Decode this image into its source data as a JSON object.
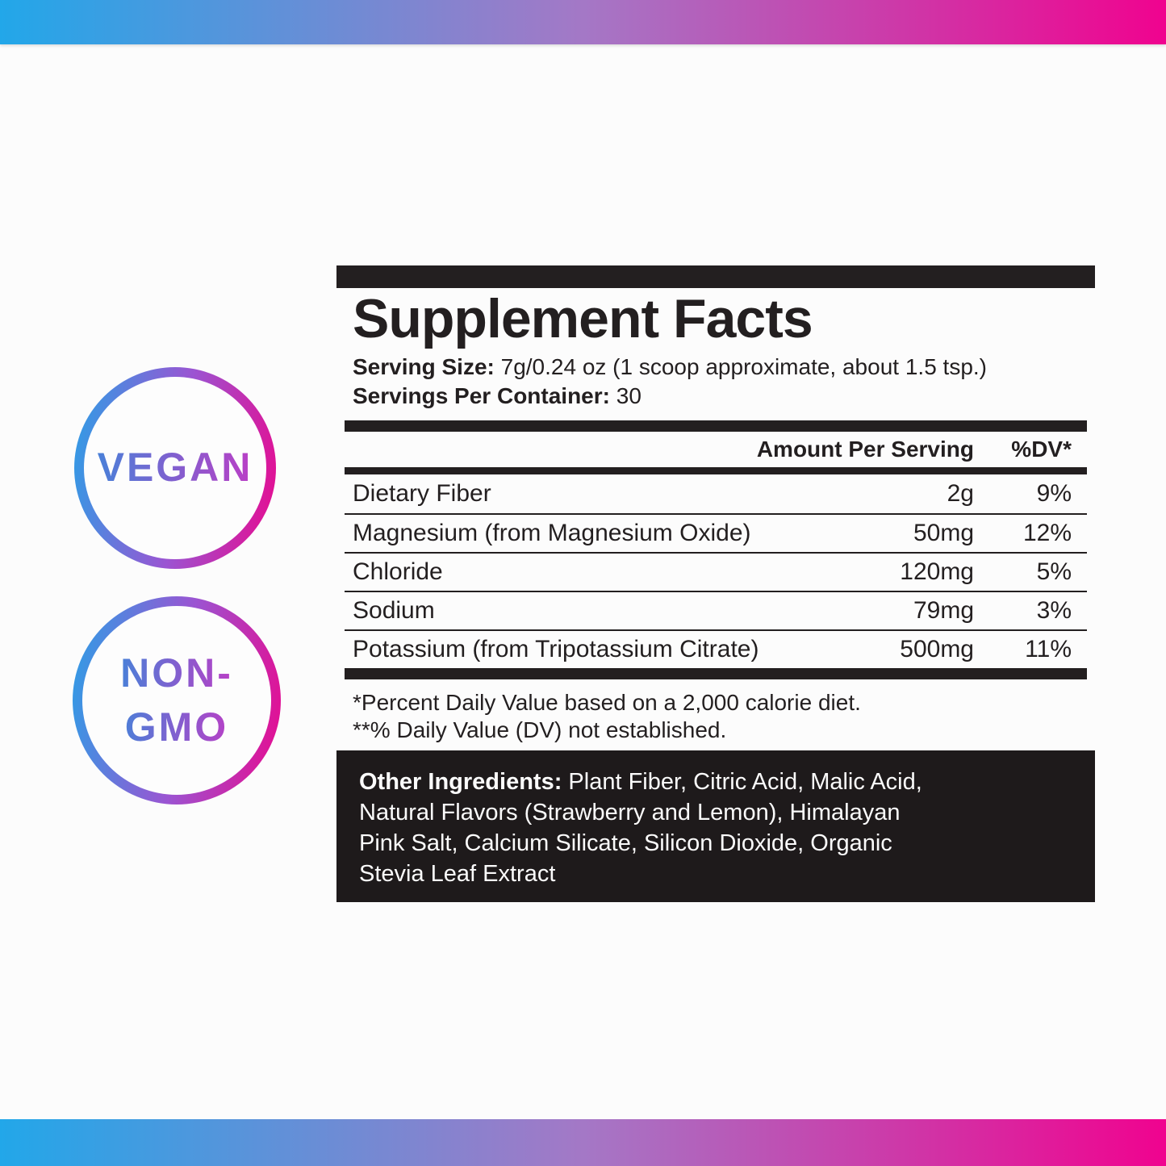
{
  "colors": {
    "gradient_from": "#22A7E9",
    "gradient_mid": "#A478C6",
    "gradient_to": "#F0038F",
    "ink": "#231F20",
    "other_box_bg": "#1E1A1B"
  },
  "badges": {
    "vegan": {
      "line1": "VEGAN"
    },
    "non_gmo": {
      "line1": "NON-",
      "line2": "GMO"
    }
  },
  "panel": {
    "title": "Supplement Facts",
    "serving_size_label": "Serving Size:",
    "serving_size_value": "7g/0.24 oz (1 scoop approximate, about 1.5 tsp.)",
    "servings_label": "Servings Per Container:",
    "servings_value": "30",
    "columns": {
      "amount": "Amount Per Serving",
      "dv": "%DV*"
    },
    "rows": [
      {
        "name": "Dietary Fiber",
        "amount": "2g",
        "dv": "9%"
      },
      {
        "name": "Magnesium (from Magnesium Oxide)",
        "amount": "50mg",
        "dv": "12%"
      },
      {
        "name": "Chloride",
        "amount": "120mg",
        "dv": "5%"
      },
      {
        "name": "Sodium",
        "amount": "79mg",
        "dv": "3%"
      },
      {
        "name": "Potassium (from Tripotassium Citrate)",
        "amount": "500mg",
        "dv": "11%"
      }
    ],
    "footnotes": {
      "line1": "*Percent Daily Value based on a 2,000 calorie diet.",
      "line2": "**% Daily Value (DV) not established."
    },
    "other_ingredients": {
      "label": "Other Ingredients:",
      "line1": "Plant Fiber, Citric Acid, Malic Acid,",
      "line2": "Natural Flavors (Strawberry and Lemon), Himalayan",
      "line3": "Pink Salt, Calcium Silicate, Silicon Dioxide, Organic",
      "line4": "Stevia Leaf Extract"
    }
  }
}
